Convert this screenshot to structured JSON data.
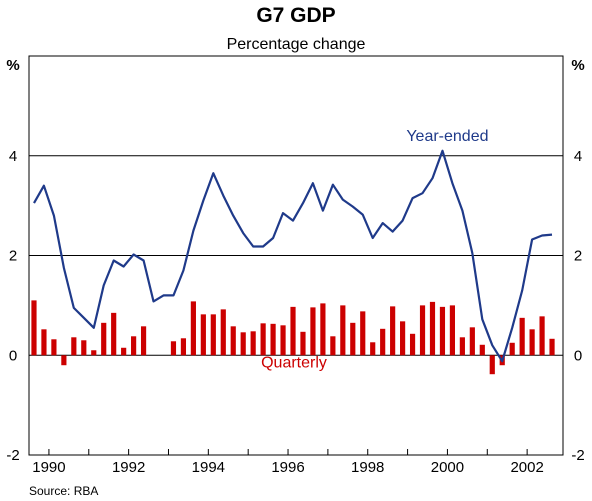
{
  "chart_data": {
    "type": "bar+line",
    "title": "G7 GDP",
    "subtitle": "Percentage change",
    "y_unit_left": "%",
    "y_unit_right": "%",
    "ylim": [
      -2,
      6
    ],
    "yticks": [
      -2,
      0,
      2,
      4
    ],
    "xlim": [
      1989.5,
      2002.9
    ],
    "xticks": [
      1990,
      1992,
      1994,
      1996,
      1998,
      2000,
      2002
    ],
    "grid": "horizontal at 2 and 4",
    "source": "Source: RBA",
    "series": [
      {
        "name": "Quarterly",
        "type": "bar",
        "color": "#cc0000",
        "x": [
          1989.625,
          1989.875,
          1990.125,
          1990.375,
          1990.625,
          1990.875,
          1991.125,
          1991.375,
          1991.625,
          1991.875,
          1992.125,
          1992.375,
          1992.625,
          1992.875,
          1993.125,
          1993.375,
          1993.625,
          1993.875,
          1994.125,
          1994.375,
          1994.625,
          1994.875,
          1995.125,
          1995.375,
          1995.625,
          1995.875,
          1996.125,
          1996.375,
          1996.625,
          1996.875,
          1997.125,
          1997.375,
          1997.625,
          1997.875,
          1998.125,
          1998.375,
          1998.625,
          1998.875,
          1999.125,
          1999.375,
          1999.625,
          1999.875,
          2000.125,
          2000.375,
          2000.625,
          2000.875,
          2001.125,
          2001.375,
          2001.625,
          2001.875,
          2002.125,
          2002.375,
          2002.625
        ],
        "values": [
          1.1,
          0.52,
          0.32,
          -0.2,
          0.36,
          0.3,
          0.1,
          0.65,
          0.85,
          0.15,
          0.38,
          0.58,
          0.0,
          0.0,
          0.28,
          0.34,
          1.08,
          0.82,
          0.82,
          0.92,
          0.58,
          0.46,
          0.48,
          0.64,
          0.63,
          0.6,
          0.97,
          0.47,
          0.96,
          1.04,
          0.38,
          1.0,
          0.65,
          0.88,
          0.26,
          0.53,
          0.98,
          0.68,
          0.43,
          1.0,
          1.07,
          0.97,
          1.0,
          0.36,
          0.56,
          0.21,
          -0.38,
          -0.2,
          0.25,
          0.75,
          0.52,
          0.78,
          0.33
        ]
      },
      {
        "name": "Year-ended",
        "type": "line",
        "color": "#1f3a8a",
        "x": [
          1989.625,
          1989.875,
          1990.125,
          1990.375,
          1990.625,
          1990.875,
          1991.125,
          1991.375,
          1991.625,
          1991.875,
          1992.125,
          1992.375,
          1992.625,
          1992.875,
          1993.125,
          1993.375,
          1993.625,
          1993.875,
          1994.125,
          1994.375,
          1994.625,
          1994.875,
          1995.125,
          1995.375,
          1995.625,
          1995.875,
          1996.125,
          1996.375,
          1996.625,
          1996.875,
          1997.125,
          1997.375,
          1997.625,
          1997.875,
          1998.125,
          1998.375,
          1998.625,
          1998.875,
          1999.125,
          1999.375,
          1999.625,
          1999.875,
          2000.125,
          2000.375,
          2000.625,
          2000.875,
          2001.125,
          2001.375,
          2001.625,
          2001.875,
          2002.125,
          2002.375,
          2002.625
        ],
        "values": [
          3.05,
          3.4,
          2.8,
          1.75,
          0.95,
          0.75,
          0.55,
          1.4,
          1.9,
          1.78,
          2.02,
          1.9,
          1.08,
          1.2,
          1.2,
          1.7,
          2.5,
          3.1,
          3.65,
          3.2,
          2.8,
          2.45,
          2.18,
          2.18,
          2.35,
          2.85,
          2.7,
          3.05,
          3.45,
          2.9,
          3.42,
          3.12,
          2.98,
          2.82,
          2.35,
          2.65,
          2.48,
          2.7,
          3.15,
          3.25,
          3.55,
          4.1,
          3.45,
          2.9,
          2.05,
          0.72,
          0.2,
          -0.12,
          0.55,
          1.3,
          2.32,
          2.4,
          2.42
        ]
      }
    ],
    "annotations": [
      {
        "text": "Year-ended",
        "color": "#1f3a8a",
        "x": 2000.0,
        "y": 4.3
      },
      {
        "text": "Quarterly",
        "color": "#cc0000",
        "x": 1996.15,
        "y": -0.25
      }
    ]
  }
}
